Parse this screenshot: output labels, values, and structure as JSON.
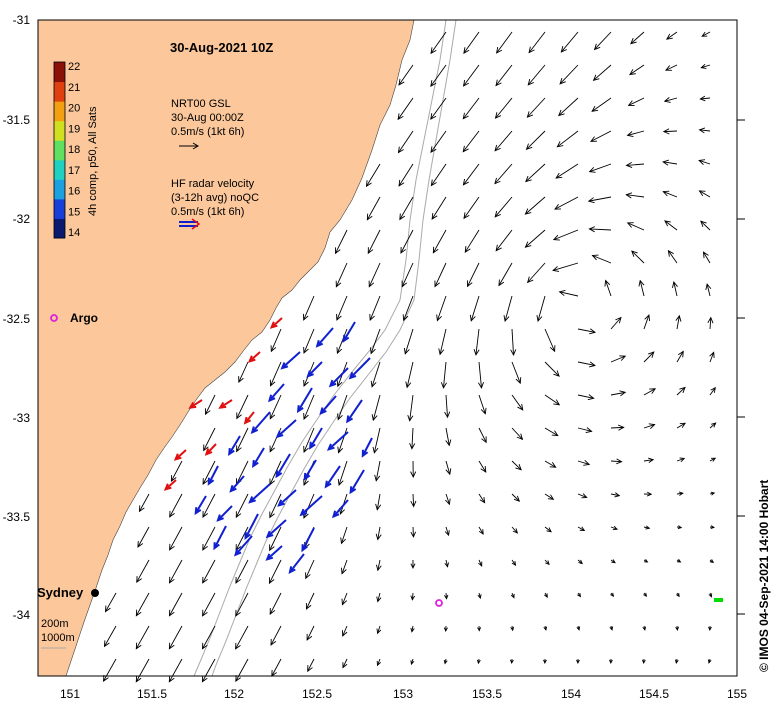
{
  "title": "30-Aug-2021 10Z",
  "axes": {
    "lon_ticks": [
      "151",
      "151.5",
      "152",
      "152.5",
      "153",
      "153.5",
      "154",
      "154.5",
      "155"
    ],
    "lat_ticks": [
      "-31",
      "-31.5",
      "-32",
      "-32.5",
      "-33",
      "-33.5",
      "-34"
    ]
  },
  "colorbar": {
    "label": "4h comp, p50, All Sats",
    "ticks": [
      "22",
      "21",
      "20",
      "19",
      "18",
      "17",
      "16",
      "15",
      "14"
    ],
    "colors": [
      "#0a1a6e",
      "#1840d8",
      "#1ca0e0",
      "#20d0c0",
      "#60e060",
      "#d0e020",
      "#f0a010",
      "#e04010",
      "#8a1008"
    ]
  },
  "legend": {
    "gsl": [
      "NRT00 GSL",
      "30-Aug 00:00Z",
      "0.5m/s (1kt 6h)"
    ],
    "hf": [
      "HF radar velocity",
      "(3-12h avg) noQC",
      "0.5m/s (1kt 6h)"
    ]
  },
  "argo_label": "Argo",
  "city": "Sydney",
  "isobaths": [
    "200m",
    "1000m"
  ],
  "credit": "© IMOS 04-Sep-2021 14:00 Hobart",
  "colors": {
    "land": "#fcc89b",
    "hf_offshore": "#1020d0",
    "hf_nearshore": "#e01010",
    "argo": "#e020e0",
    "glider": "#00dd00",
    "isobath": "#aaaaaa"
  }
}
